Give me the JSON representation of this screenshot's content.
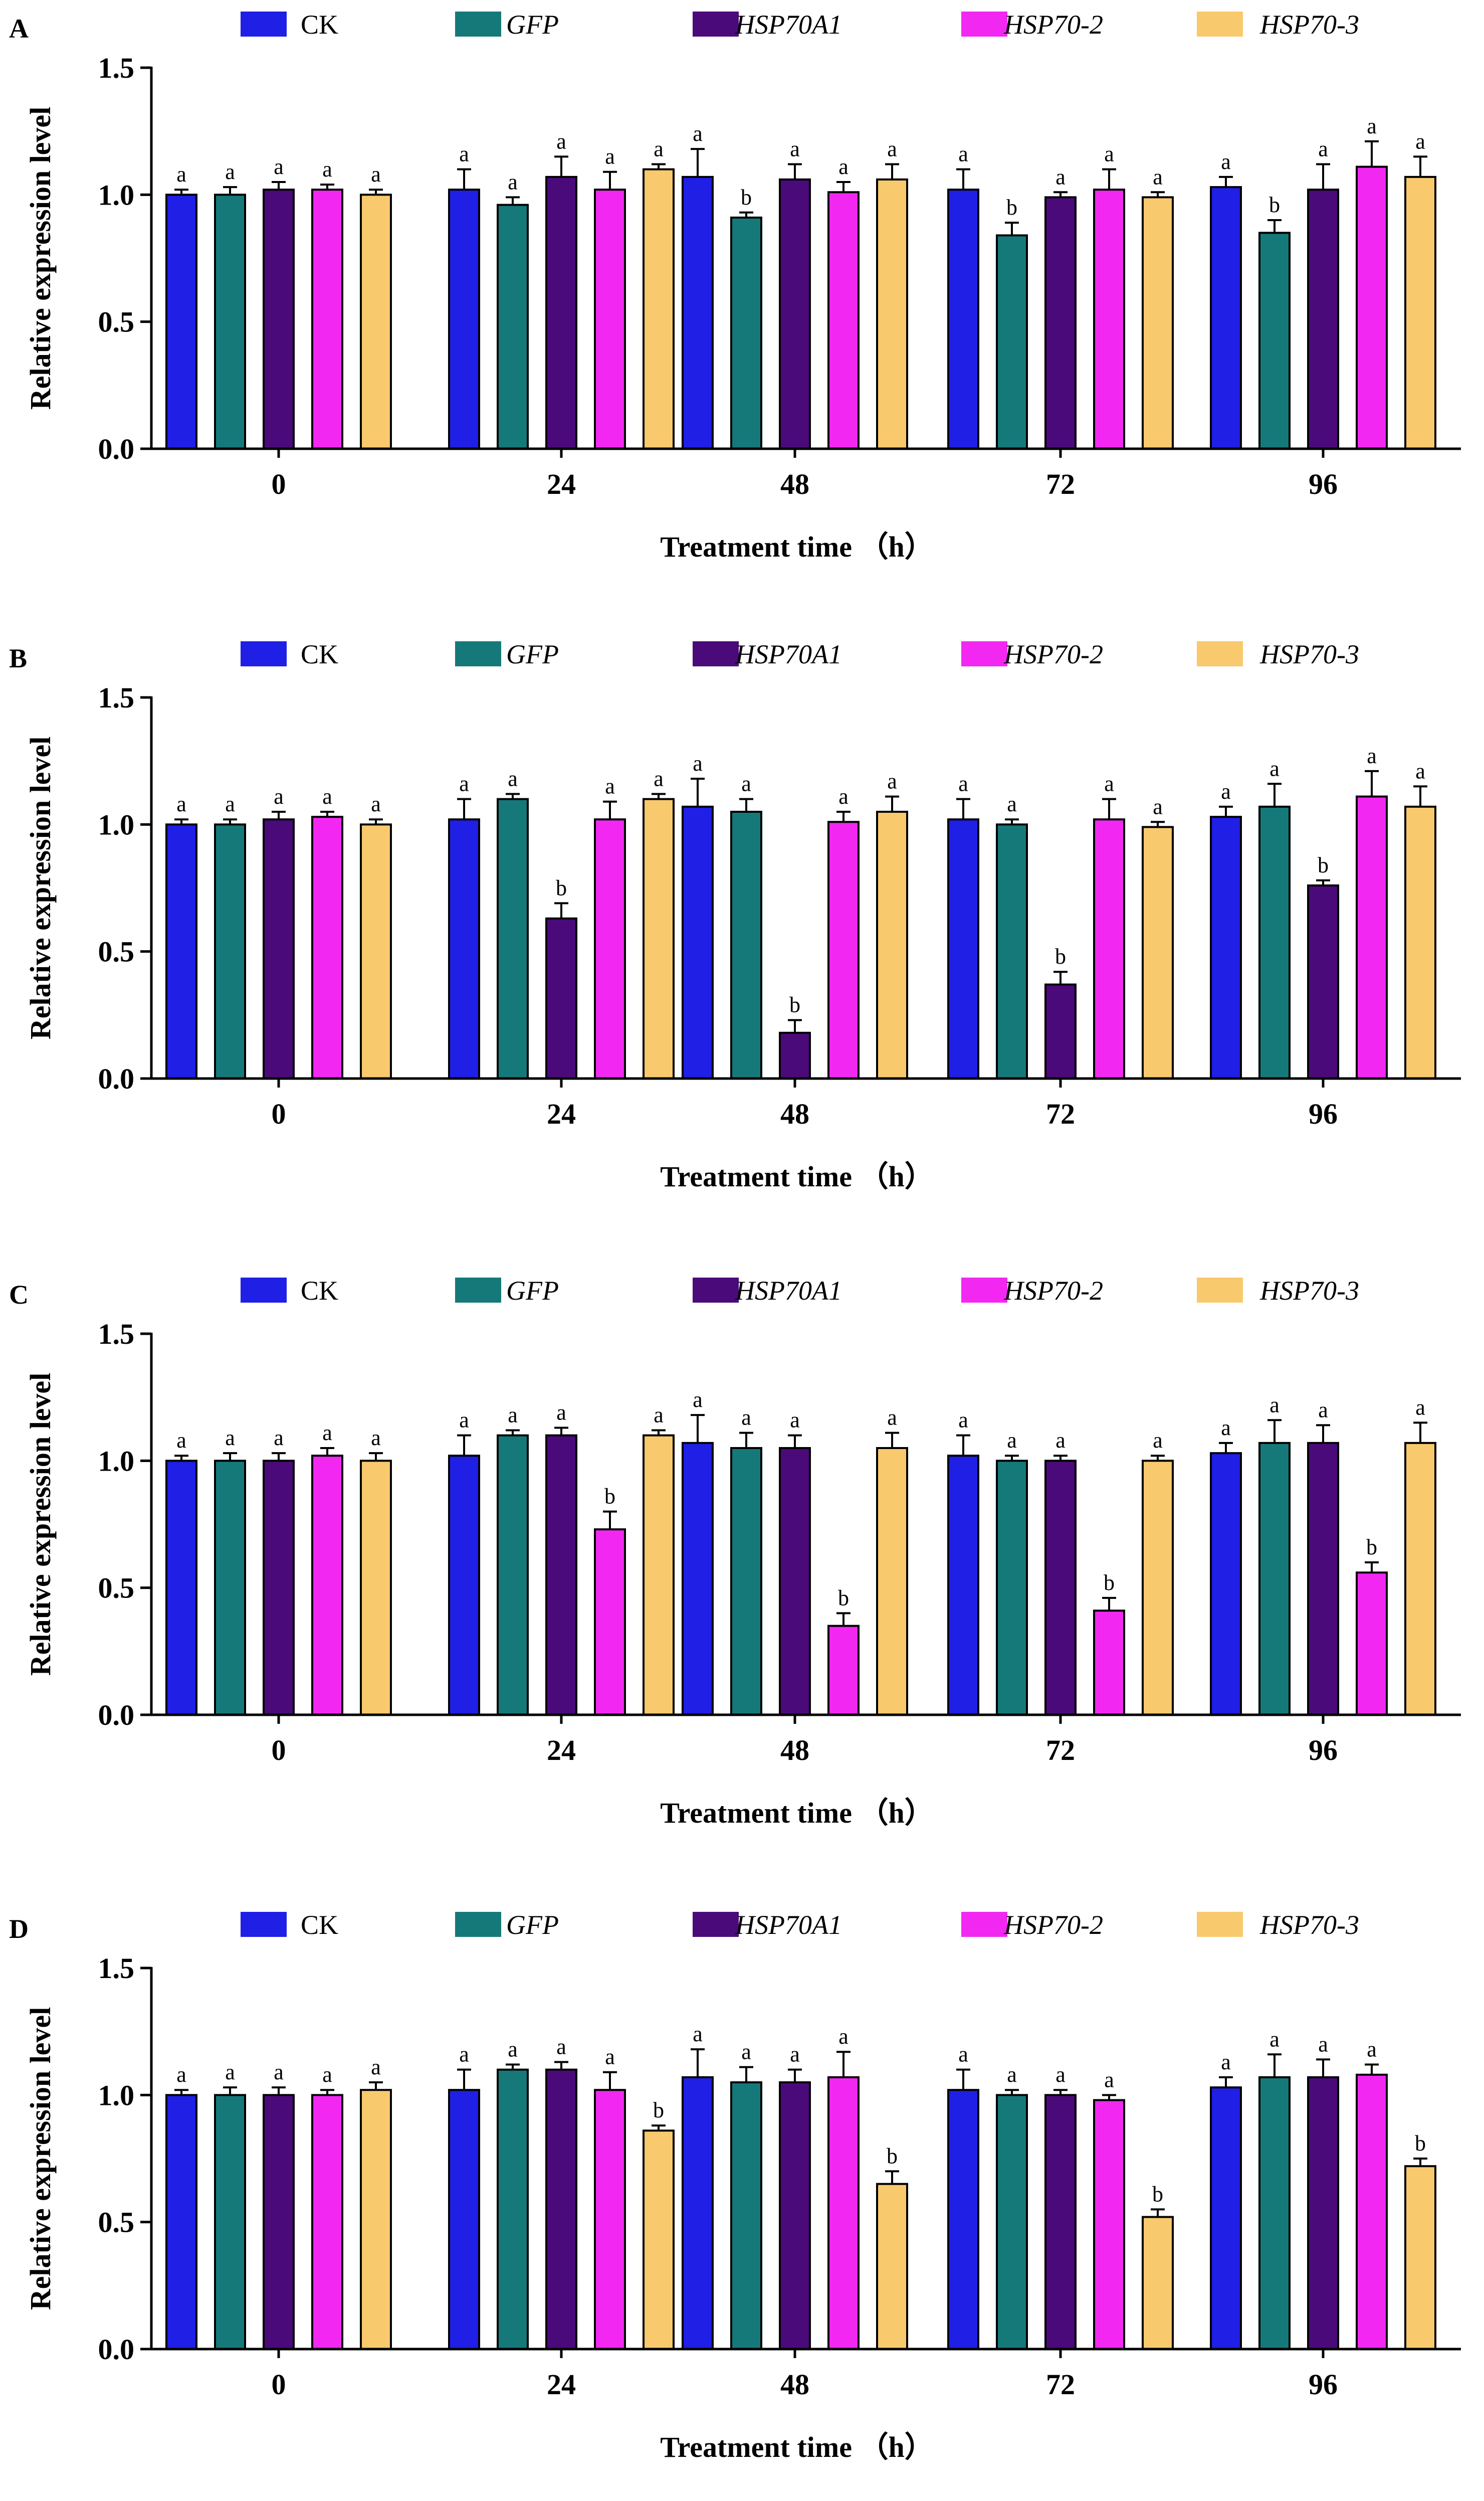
{
  "chart_data": [
    {
      "panel": "A",
      "type": "bar",
      "categories": [
        "0",
        "24",
        "48",
        "72",
        "96"
      ],
      "xlabel": "Treatment time （h）",
      "ylabel": "Relative expression level",
      "ylim": [
        0,
        1.5
      ],
      "yticks": [
        "0.0",
        "0.5",
        "1.0",
        "1.5"
      ],
      "series": [
        {
          "name": "CK",
          "italic": false,
          "color": "#1f1fe6",
          "values": [
            1.0,
            1.02,
            1.07,
            1.02,
            1.03
          ],
          "errors": [
            0.02,
            0.08,
            0.11,
            0.08,
            0.04
          ],
          "labels": [
            "a",
            "a",
            "a",
            "a",
            "a"
          ]
        },
        {
          "name": "GFP",
          "italic": true,
          "color": "#15797a",
          "values": [
            1.0,
            0.96,
            0.91,
            0.84,
            0.85
          ],
          "errors": [
            0.03,
            0.03,
            0.02,
            0.05,
            0.05
          ],
          "labels": [
            "a",
            "a",
            "b",
            "b",
            "b"
          ]
        },
        {
          "name": "HSP70A1",
          "italic": true,
          "color": "#4b0a7a",
          "values": [
            1.02,
            1.07,
            1.06,
            0.99,
            1.02
          ],
          "errors": [
            0.03,
            0.08,
            0.06,
            0.02,
            0.1
          ],
          "labels": [
            "a",
            "a",
            "a",
            "a",
            "a"
          ]
        },
        {
          "name": "HSP70-2",
          "italic": true,
          "color": "#f228f2",
          "values": [
            1.02,
            1.02,
            1.01,
            1.02,
            1.11
          ],
          "errors": [
            0.02,
            0.07,
            0.04,
            0.08,
            0.1
          ],
          "labels": [
            "a",
            "a",
            "a",
            "a",
            "a"
          ]
        },
        {
          "name": "HSP70-3",
          "italic": true,
          "color": "#f9c96e",
          "values": [
            1.0,
            1.1,
            1.06,
            0.99,
            1.07
          ],
          "errors": [
            0.02,
            0.02,
            0.06,
            0.02,
            0.08
          ],
          "labels": [
            "a",
            "a",
            "a",
            "a",
            "a"
          ]
        }
      ]
    },
    {
      "panel": "B",
      "type": "bar",
      "categories": [
        "0",
        "24",
        "48",
        "72",
        "96"
      ],
      "xlabel": "Treatment time （h）",
      "ylabel": "Relative expression level",
      "ylim": [
        0,
        1.5
      ],
      "yticks": [
        "0.0",
        "0.5",
        "1.0",
        "1.5"
      ],
      "series": [
        {
          "name": "CK",
          "italic": false,
          "color": "#1f1fe6",
          "values": [
            1.0,
            1.02,
            1.07,
            1.02,
            1.03
          ],
          "errors": [
            0.02,
            0.08,
            0.11,
            0.08,
            0.04
          ],
          "labels": [
            "a",
            "a",
            "a",
            "a",
            "a"
          ]
        },
        {
          "name": "GFP",
          "italic": true,
          "color": "#15797a",
          "values": [
            1.0,
            1.1,
            1.05,
            1.0,
            1.07
          ],
          "errors": [
            0.02,
            0.02,
            0.05,
            0.02,
            0.09
          ],
          "labels": [
            "a",
            "a",
            "a",
            "a",
            "a"
          ]
        },
        {
          "name": "HSP70A1",
          "italic": true,
          "color": "#4b0a7a",
          "values": [
            1.02,
            0.63,
            0.18,
            0.37,
            0.76
          ],
          "errors": [
            0.03,
            0.06,
            0.05,
            0.05,
            0.02
          ],
          "labels": [
            "a",
            "b",
            "b",
            "b",
            "b"
          ]
        },
        {
          "name": "HSP70-2",
          "italic": true,
          "color": "#f228f2",
          "values": [
            1.03,
            1.02,
            1.01,
            1.02,
            1.11
          ],
          "errors": [
            0.02,
            0.07,
            0.04,
            0.08,
            0.1
          ],
          "labels": [
            "a",
            "a",
            "a",
            "a",
            "a"
          ]
        },
        {
          "name": "HSP70-3",
          "italic": true,
          "color": "#f9c96e",
          "values": [
            1.0,
            1.1,
            1.05,
            0.99,
            1.07
          ],
          "errors": [
            0.02,
            0.02,
            0.06,
            0.02,
            0.08
          ],
          "labels": [
            "a",
            "a",
            "a",
            "a",
            "a"
          ]
        }
      ]
    },
    {
      "panel": "C",
      "type": "bar",
      "categories": [
        "0",
        "24",
        "48",
        "72",
        "96"
      ],
      "xlabel": "Treatment time （h）",
      "ylabel": "Relative expression level",
      "ylim": [
        0,
        1.5
      ],
      "yticks": [
        "0.0",
        "0.5",
        "1.0",
        "1.5"
      ],
      "series": [
        {
          "name": "CK",
          "italic": false,
          "color": "#1f1fe6",
          "values": [
            1.0,
            1.02,
            1.07,
            1.02,
            1.03
          ],
          "errors": [
            0.02,
            0.08,
            0.11,
            0.08,
            0.04
          ],
          "labels": [
            "a",
            "a",
            "a",
            "a",
            "a"
          ]
        },
        {
          "name": "GFP",
          "italic": true,
          "color": "#15797a",
          "values": [
            1.0,
            1.1,
            1.05,
            1.0,
            1.07
          ],
          "errors": [
            0.03,
            0.02,
            0.06,
            0.02,
            0.09
          ],
          "labels": [
            "a",
            "a",
            "a",
            "a",
            "a"
          ]
        },
        {
          "name": "HSP70A1",
          "italic": true,
          "color": "#4b0a7a",
          "values": [
            1.0,
            1.1,
            1.05,
            1.0,
            1.07
          ],
          "errors": [
            0.03,
            0.03,
            0.05,
            0.02,
            0.07
          ],
          "labels": [
            "a",
            "a",
            "a",
            "a",
            "a"
          ]
        },
        {
          "name": "HSP70-2",
          "italic": true,
          "color": "#f228f2",
          "values": [
            1.02,
            0.73,
            0.35,
            0.41,
            0.56
          ],
          "errors": [
            0.03,
            0.07,
            0.05,
            0.05,
            0.04
          ],
          "labels": [
            "a",
            "b",
            "b",
            "b",
            "b"
          ]
        },
        {
          "name": "HSP70-3",
          "italic": true,
          "color": "#f9c96e",
          "values": [
            1.0,
            1.1,
            1.05,
            1.0,
            1.07
          ],
          "errors": [
            0.03,
            0.02,
            0.06,
            0.02,
            0.08
          ],
          "labels": [
            "a",
            "a",
            "a",
            "a",
            "a"
          ]
        }
      ]
    },
    {
      "panel": "D",
      "type": "bar",
      "categories": [
        "0",
        "24",
        "48",
        "72",
        "96"
      ],
      "xlabel": "Treatment time （h）",
      "ylabel": "Relative expression level",
      "ylim": [
        0,
        1.5
      ],
      "yticks": [
        "0.0",
        "0.5",
        "1.0",
        "1.5"
      ],
      "series": [
        {
          "name": "CK",
          "italic": false,
          "color": "#1f1fe6",
          "values": [
            1.0,
            1.02,
            1.07,
            1.02,
            1.03
          ],
          "errors": [
            0.02,
            0.08,
            0.11,
            0.08,
            0.04
          ],
          "labels": [
            "a",
            "a",
            "a",
            "a",
            "a"
          ]
        },
        {
          "name": "GFP",
          "italic": true,
          "color": "#15797a",
          "values": [
            1.0,
            1.1,
            1.05,
            1.0,
            1.07
          ],
          "errors": [
            0.03,
            0.02,
            0.06,
            0.02,
            0.09
          ],
          "labels": [
            "a",
            "a",
            "a",
            "a",
            "a"
          ]
        },
        {
          "name": "HSP70A1",
          "italic": true,
          "color": "#4b0a7a",
          "values": [
            1.0,
            1.1,
            1.05,
            1.0,
            1.07
          ],
          "errors": [
            0.03,
            0.03,
            0.05,
            0.02,
            0.07
          ],
          "labels": [
            "a",
            "a",
            "a",
            "a",
            "a"
          ]
        },
        {
          "name": "HSP70-2",
          "italic": true,
          "color": "#f228f2",
          "values": [
            1.0,
            1.02,
            1.07,
            0.98,
            1.08
          ],
          "errors": [
            0.02,
            0.07,
            0.1,
            0.02,
            0.04
          ],
          "labels": [
            "a",
            "a",
            "a",
            "a",
            "a"
          ]
        },
        {
          "name": "HSP70-3",
          "italic": true,
          "color": "#f9c96e",
          "values": [
            1.02,
            0.86,
            0.65,
            0.52,
            0.72
          ],
          "errors": [
            0.03,
            0.02,
            0.05,
            0.03,
            0.03
          ],
          "labels": [
            "a",
            "b",
            "b",
            "b",
            "b"
          ]
        }
      ]
    }
  ]
}
